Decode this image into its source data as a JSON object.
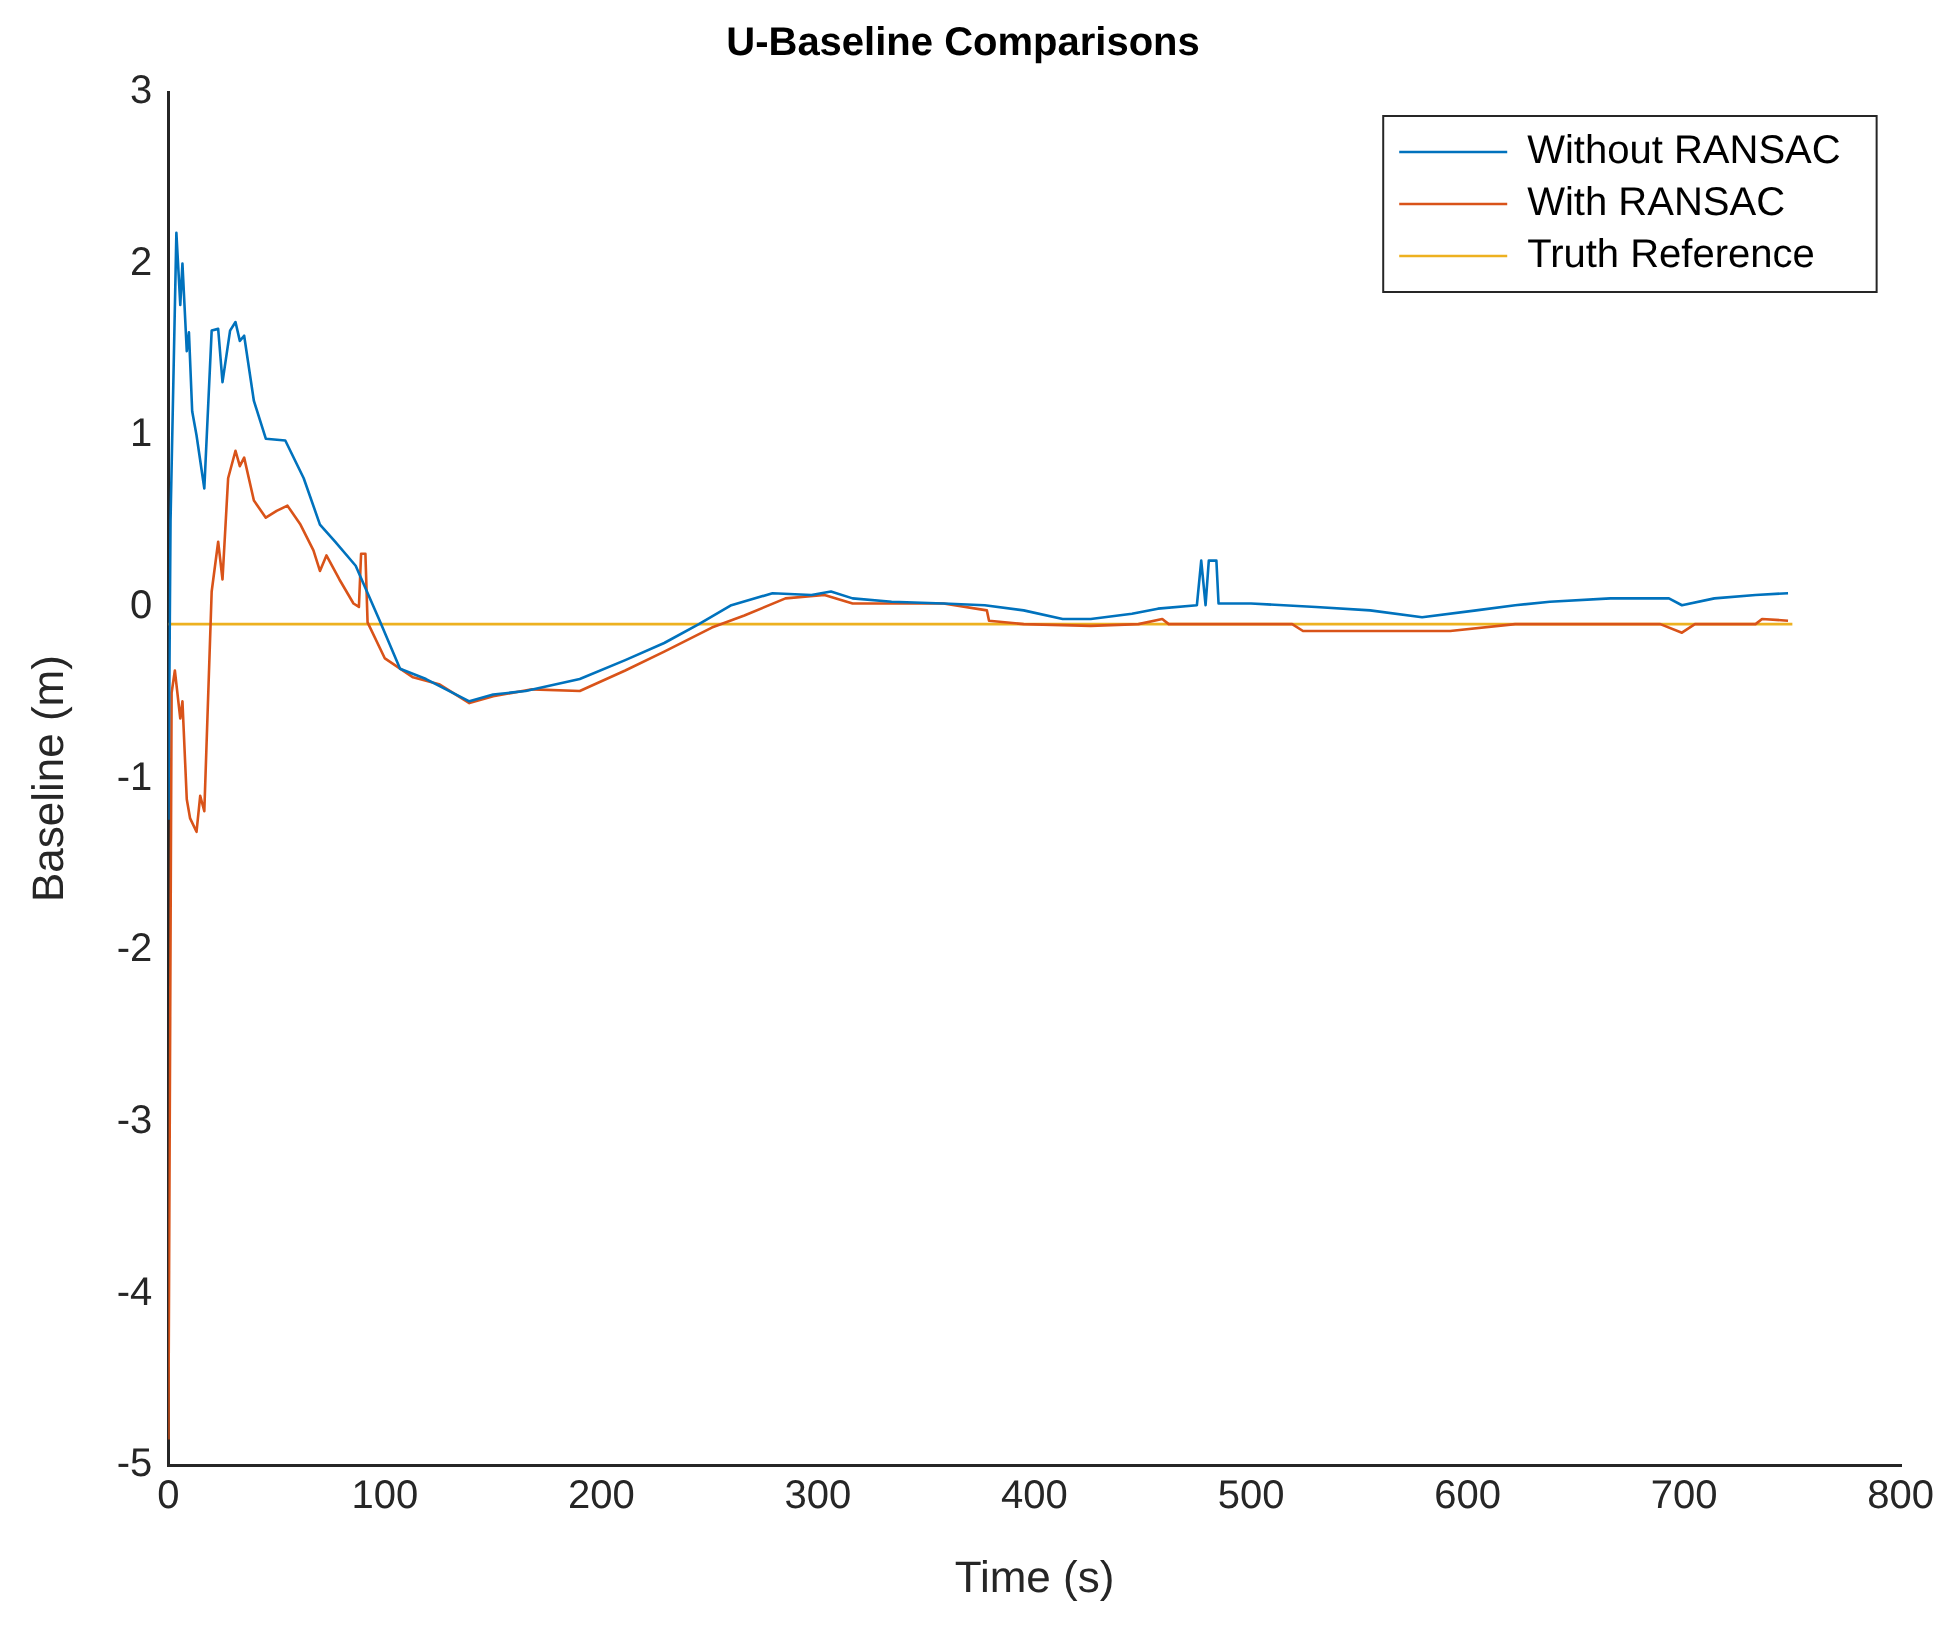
{
  "chart_data": {
    "type": "line",
    "title": "U-Baseline Comparisons",
    "xlabel": "Time (s)",
    "ylabel": "Baseline (m)",
    "xlim": [
      0,
      800
    ],
    "xticks": [
      0,
      100,
      200,
      300,
      400,
      500,
      600,
      700,
      800
    ],
    "ylim": [
      -5,
      3
    ],
    "yticks": [
      -5,
      -4,
      -3,
      -2,
      -1,
      0,
      1,
      2,
      3
    ],
    "grid": false,
    "legend": "top right",
    "marker": "none",
    "line_style": "solid",
    "series": [
      {
        "name": "Without RANSAC",
        "color": "#0072bd",
        "x": [
          0,
          1,
          3.7,
          5.5,
          6.5,
          8.5,
          9.5,
          11,
          13,
          16.6,
          20,
          23,
          25,
          28.5,
          31,
          33,
          35,
          39.5,
          45,
          54,
          62.5,
          70,
          77,
          86.5,
          97.6,
          107,
          119,
          139,
          150,
          165,
          190,
          211,
          229,
          245,
          260,
          279,
          297,
          306,
          316,
          334,
          358,
          377,
          395,
          413,
          426,
          445,
          457,
          475,
          477,
          479,
          480.5,
          484,
          485,
          500,
          530,
          555,
          579,
          604,
          622,
          638,
          666,
          693,
          699,
          714,
          733,
          748
        ],
        "values": [
          -1.24,
          0.5,
          2.18,
          1.76,
          2.0,
          1.49,
          1.6,
          1.14,
          1.0,
          0.69,
          1.61,
          1.62,
          1.31,
          1.61,
          1.66,
          1.55,
          1.58,
          1.2,
          0.98,
          0.97,
          0.75,
          0.48,
          0.38,
          0.24,
          -0.08,
          -0.36,
          -0.42,
          -0.55,
          -0.51,
          -0.49,
          -0.42,
          -0.31,
          -0.21,
          -0.1,
          0.01,
          0.08,
          0.07,
          0.09,
          0.05,
          0.03,
          0.02,
          0.01,
          -0.02,
          -0.07,
          -0.07,
          -0.04,
          -0.01,
          0.01,
          0.27,
          0.01,
          0.27,
          0.27,
          0.02,
          0.02,
          0.0,
          -0.02,
          -0.06,
          -0.02,
          0.01,
          0.03,
          0.05,
          0.05,
          0.01,
          0.05,
          0.07,
          0.08
        ]
      },
      {
        "name": "With RANSAC",
        "color": "#d95319",
        "x": [
          0,
          1.5,
          3,
          5.5,
          6.5,
          8.5,
          10,
          13,
          14.7,
          16.6,
          20,
          23,
          25,
          27.6,
          31,
          33,
          35,
          39.5,
          45,
          50,
          55,
          61,
          67,
          70,
          73,
          79,
          85.5,
          88,
          89,
          91,
          92,
          100,
          113,
          125,
          139,
          150,
          168,
          190,
          211,
          229,
          251,
          266,
          285,
          303,
          316,
          334,
          358,
          378,
          379,
          395,
          426,
          448,
          459,
          462,
          519,
          524,
          545,
          592,
          622,
          689,
          699,
          705,
          733,
          736,
          748
        ],
        "values": [
          -4.85,
          -0.5,
          -0.37,
          -0.65,
          -0.55,
          -1.12,
          -1.23,
          -1.31,
          -1.1,
          -1.19,
          0.09,
          0.38,
          0.16,
          0.75,
          0.91,
          0.82,
          0.87,
          0.62,
          0.52,
          0.56,
          0.59,
          0.48,
          0.33,
          0.21,
          0.3,
          0.16,
          0.02,
          0.0,
          0.31,
          0.31,
          -0.09,
          -0.3,
          -0.41,
          -0.45,
          -0.56,
          -0.52,
          -0.48,
          -0.49,
          -0.37,
          -0.26,
          -0.12,
          -0.05,
          0.05,
          0.07,
          0.02,
          0.02,
          0.02,
          -0.02,
          -0.08,
          -0.1,
          -0.11,
          -0.1,
          -0.07,
          -0.1,
          -0.1,
          -0.14,
          -0.14,
          -0.14,
          -0.1,
          -0.1,
          -0.15,
          -0.1,
          -0.1,
          -0.07,
          -0.08
        ]
      },
      {
        "name": "Truth Reference",
        "color": "#edb120",
        "x": [
          0,
          750
        ],
        "values": [
          -0.1,
          -0.1
        ]
      }
    ]
  }
}
